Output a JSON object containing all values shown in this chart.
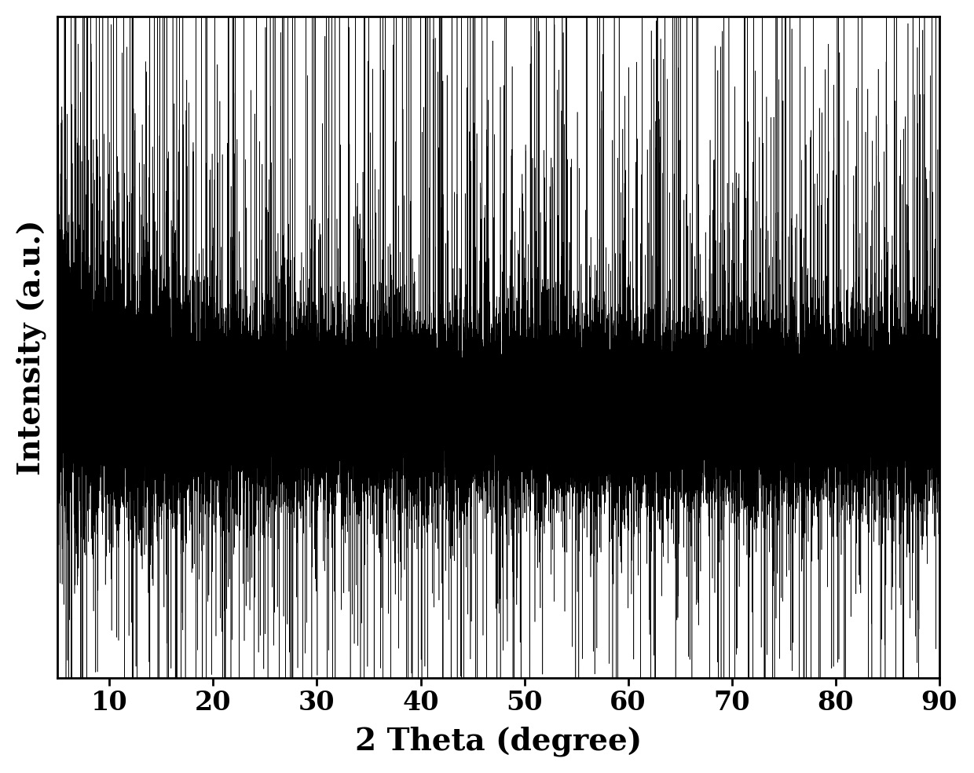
{
  "xlabel": "2 Theta (degree)",
  "ylabel": "Intensity (a.u.)",
  "xlim": [
    5,
    90
  ],
  "xticks": [
    10,
    20,
    30,
    40,
    50,
    60,
    70,
    80,
    90
  ],
  "line_color": "#000000",
  "background_color": "#ffffff",
  "xlabel_fontsize": 28,
  "ylabel_fontsize": 28,
  "tick_fontsize": 24,
  "tick_fontweight": "bold",
  "label_fontweight": "bold",
  "seed": 42,
  "n_points": 50000,
  "core_noise_amplitude": 1.0,
  "spike_amplitude": 2.8,
  "spike_probability": 0.04,
  "down_spike_probability": 0.03,
  "line_width": 0.4,
  "signal_baseline": 1.5,
  "ylim_bottom": -5.0,
  "ylim_top": 11.0
}
